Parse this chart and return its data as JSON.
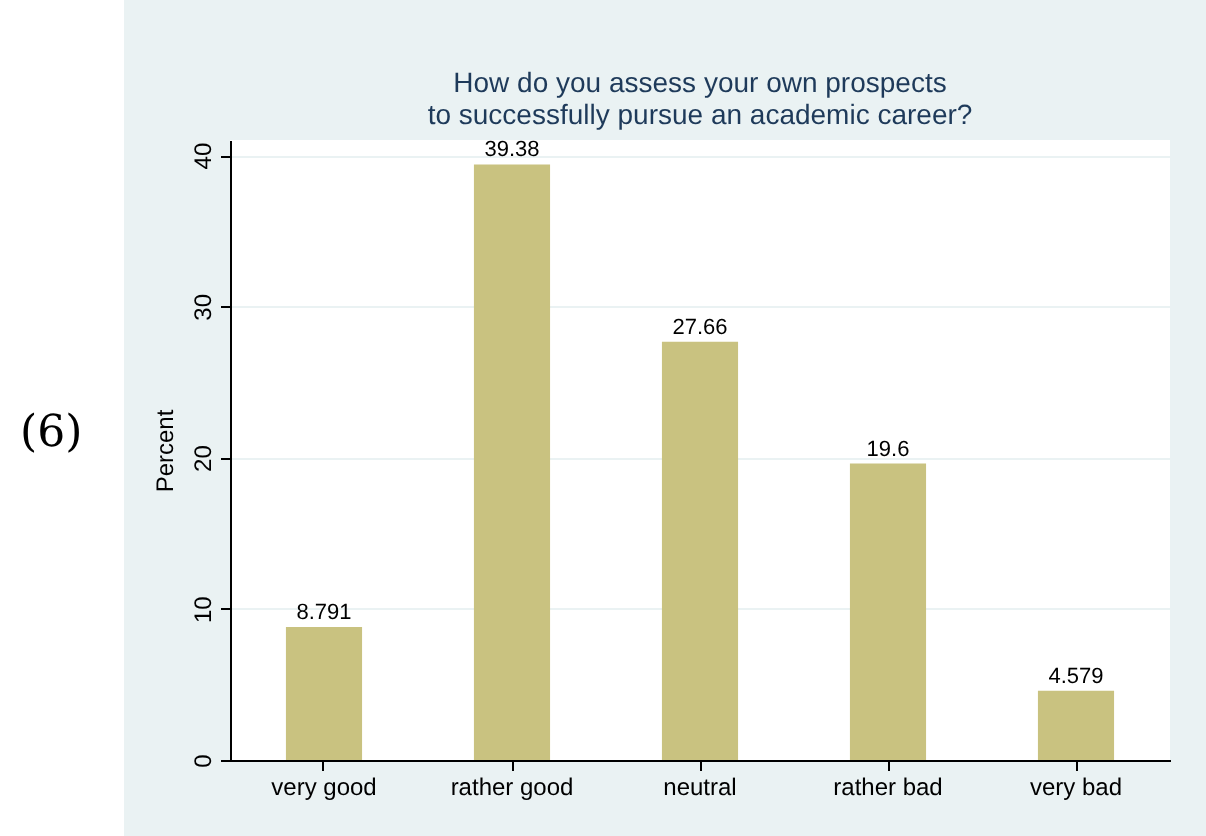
{
  "chart_data": {
    "type": "bar",
    "title": "How do you assess your own prospects\nto successfully pursue an academic career?",
    "ylabel": "Percent",
    "categories": [
      "very good",
      "rather good",
      "neutral",
      "rather bad",
      "very bad"
    ],
    "values": [
      8.791,
      39.38,
      27.66,
      19.6,
      4.579
    ],
    "color": "#c9c280",
    "ylim": [
      0,
      41
    ],
    "yticks": [
      0,
      10,
      20,
      30,
      40
    ],
    "grid": "y",
    "data_labels": true,
    "annotations": [
      "(6)"
    ]
  }
}
